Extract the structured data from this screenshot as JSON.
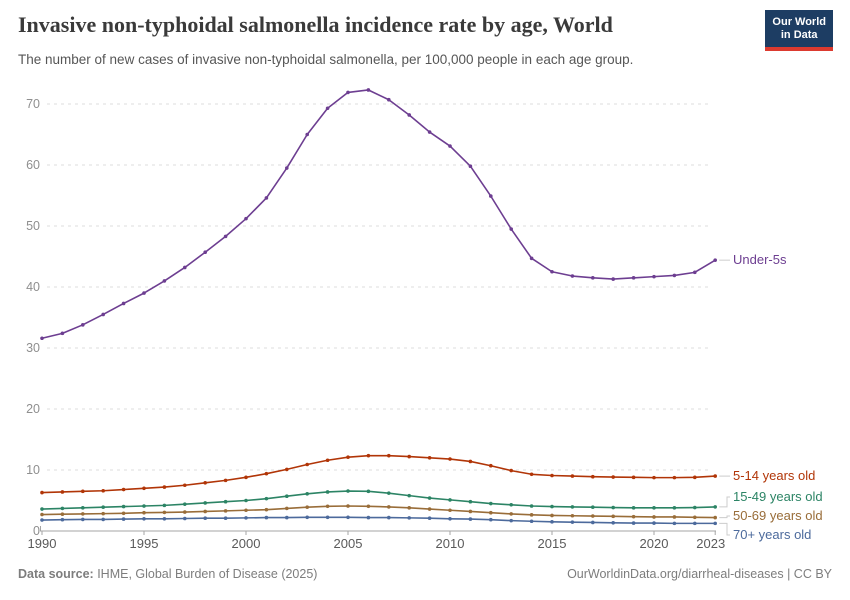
{
  "header": {
    "title": "Invasive non-typhoidal salmonella incidence rate by age, World",
    "subtitle": "The number of new cases of invasive non-typhoidal salmonella, per 100,000 people in each age group.",
    "logo": {
      "line1": "Our World",
      "line2": "in Data",
      "bg_color": "#1d3d63",
      "accent_color": "#dc3a2f"
    }
  },
  "chart_data": {
    "type": "line",
    "title": "Invasive non-typhoidal salmonella incidence rate by age, World",
    "xlabel": "",
    "ylabel": "",
    "ylim": [
      0,
      75
    ],
    "yticks": [
      0,
      10,
      20,
      30,
      40,
      50,
      60,
      70
    ],
    "xticks": [
      1990,
      1995,
      2000,
      2005,
      2010,
      2015,
      2020,
      2023
    ],
    "grid": "horizontal-dashed",
    "legend_position": "right-inline-labels",
    "grid_color": "#dcdcdc",
    "axis_color": "#a5a5a5",
    "connector_color": "#cccccc",
    "x": [
      1990,
      1991,
      1992,
      1993,
      1994,
      1995,
      1996,
      1997,
      1998,
      1999,
      2000,
      2001,
      2002,
      2003,
      2004,
      2005,
      2006,
      2007,
      2008,
      2009,
      2010,
      2011,
      2012,
      2013,
      2014,
      2015,
      2016,
      2017,
      2018,
      2019,
      2020,
      2021,
      2022,
      2023
    ],
    "series": [
      {
        "name": "Under-5s",
        "color": "#6d3e91",
        "values": [
          31.6,
          32.4,
          33.8,
          35.5,
          37.3,
          39.0,
          41.0,
          43.2,
          45.7,
          48.3,
          51.2,
          54.6,
          59.5,
          65.0,
          69.3,
          71.9,
          72.3,
          70.7,
          68.2,
          65.4,
          63.1,
          59.8,
          54.9,
          49.5,
          44.7,
          42.5,
          41.8,
          41.5,
          41.3,
          41.5,
          41.7,
          41.9,
          42.4,
          44.4
        ]
      },
      {
        "name": "5-14 years old",
        "color": "#b13507",
        "values": [
          6.3,
          6.4,
          6.5,
          6.6,
          6.8,
          7.0,
          7.2,
          7.5,
          7.9,
          8.3,
          8.8,
          9.4,
          10.1,
          10.9,
          11.6,
          12.1,
          12.35,
          12.35,
          12.2,
          12.0,
          11.8,
          11.4,
          10.7,
          9.9,
          9.3,
          9.1,
          9.0,
          8.9,
          8.85,
          8.8,
          8.75,
          8.75,
          8.8,
          9.0
        ]
      },
      {
        "name": "15-49 years old",
        "color": "#2c8465",
        "values": [
          3.6,
          3.7,
          3.8,
          3.9,
          4.0,
          4.1,
          4.2,
          4.4,
          4.6,
          4.8,
          5.0,
          5.3,
          5.7,
          6.1,
          6.4,
          6.55,
          6.5,
          6.2,
          5.8,
          5.4,
          5.1,
          4.8,
          4.5,
          4.3,
          4.1,
          4.0,
          3.95,
          3.9,
          3.85,
          3.8,
          3.8,
          3.8,
          3.85,
          3.95
        ]
      },
      {
        "name": "50-69 years old",
        "color": "#996d39",
        "values": [
          2.7,
          2.75,
          2.8,
          2.85,
          2.9,
          3.0,
          3.05,
          3.1,
          3.2,
          3.3,
          3.4,
          3.5,
          3.7,
          3.9,
          4.05,
          4.1,
          4.05,
          3.95,
          3.8,
          3.6,
          3.4,
          3.2,
          3.0,
          2.8,
          2.65,
          2.55,
          2.5,
          2.45,
          2.4,
          2.35,
          2.3,
          2.3,
          2.25,
          2.2
        ]
      },
      {
        "name": "70+ years old",
        "color": "#4c6a9c",
        "values": [
          1.8,
          1.85,
          1.9,
          1.9,
          1.95,
          2.0,
          2.0,
          2.05,
          2.1,
          2.1,
          2.15,
          2.2,
          2.2,
          2.25,
          2.25,
          2.25,
          2.2,
          2.2,
          2.15,
          2.1,
          2.0,
          1.95,
          1.85,
          1.7,
          1.6,
          1.5,
          1.45,
          1.4,
          1.35,
          1.3,
          1.3,
          1.25,
          1.25,
          1.25
        ]
      }
    ]
  },
  "footer": {
    "source_label": "Data source:",
    "source_text": " IHME, Global Burden of Disease (2025)",
    "credit": "OurWorldinData.org/diarrheal-diseases | CC BY"
  }
}
